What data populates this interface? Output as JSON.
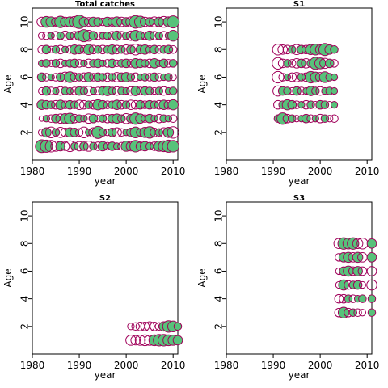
{
  "colors": {
    "positive_fill": "#57c27a",
    "outline": "#a0005a",
    "frame": "#000000"
  },
  "chart_data": [
    {
      "type": "scatter",
      "subtype": "bubble-residuals",
      "title": "Total catches",
      "xlabel": "year",
      "ylabel": "Age",
      "xlim": [
        1980,
        2011
      ],
      "ylim": [
        0,
        11
      ],
      "xticks": [
        1980,
        1990,
        2000,
        2010
      ],
      "yticks": [
        2,
        4,
        6,
        8,
        10
      ],
      "years": [
        1982,
        1983,
        1984,
        1985,
        1986,
        1987,
        1988,
        1989,
        1990,
        1991,
        1992,
        1993,
        1994,
        1995,
        1996,
        1997,
        1998,
        1999,
        2000,
        2001,
        2002,
        2003,
        2004,
        2005,
        2006,
        2007,
        2008,
        2009,
        2010
      ],
      "ages": [
        1,
        2,
        3,
        4,
        5,
        6,
        7,
        8,
        9,
        10
      ],
      "residuals": [
        [
          1.1,
          1.0,
          -0.9,
          -0.7,
          0.6,
          -0.5,
          -0.8,
          0.4,
          -0.6,
          0.5,
          -0.7,
          0.4,
          -0.5,
          0.6,
          -0.4,
          0.5,
          0.3,
          -0.4,
          0.7,
          -0.6,
          0.9,
          -0.5,
          0.6,
          0.4,
          -0.5,
          0.7,
          0.8,
          1.0,
          0.9
        ],
        [
          -0.3,
          0.6,
          -0.8,
          0.4,
          -0.7,
          -0.5,
          0.6,
          0.5,
          -0.4,
          -0.8,
          0.3,
          -0.6,
          1.0,
          0.4,
          -0.3,
          0.5,
          -0.6,
          -0.4,
          0.3,
          0.5,
          0.8,
          -0.4,
          0.7,
          0.9,
          -0.5,
          0.4,
          -0.6,
          0.7,
          -0.9
        ],
        [
          -0.2,
          0.3,
          -0.4,
          0.5,
          -0.6,
          0.7,
          0.8,
          -0.5,
          0.4,
          0.3,
          -0.6,
          0.5,
          -0.3,
          0.4,
          -0.5,
          0.5,
          0.6,
          0.4,
          -0.7,
          0.5,
          0.9,
          0.6,
          -0.4,
          0.5,
          0.3,
          -0.5,
          0.4,
          0.3,
          -0.4
        ],
        [
          0.6,
          0.5,
          0.4,
          -0.5,
          0.6,
          -0.4,
          0.5,
          0.4,
          -0.6,
          -0.5,
          0.4,
          -0.5,
          0.7,
          0.5,
          -0.4,
          0.4,
          0.6,
          -0.5,
          0.4,
          -0.6,
          -0.5,
          0.5,
          -0.4,
          0.5,
          0.4,
          -0.5,
          0.6,
          -0.5,
          0.7
        ],
        [
          -0.3,
          0.5,
          -0.4,
          0.3,
          -0.5,
          0.4,
          0.3,
          -0.4,
          0.5,
          0.4,
          -0.6,
          0.3,
          -0.4,
          0.5,
          0.6,
          0.4,
          -0.5,
          0.4,
          0.3,
          -0.5,
          0.6,
          -0.4,
          0.5,
          0.4,
          -0.3,
          0.4,
          -0.5,
          0.3,
          0.4
        ],
        [
          0.5,
          -0.4,
          0.3,
          -0.4,
          0.5,
          -0.7,
          0.8,
          -0.5,
          0.4,
          -0.5,
          0.6,
          -0.4,
          0.5,
          0.4,
          -0.5,
          0.4,
          -0.6,
          0.5,
          0.6,
          0.4,
          -0.5,
          0.3,
          0.4,
          -0.4,
          0.5,
          -0.4,
          0.3,
          0.4,
          -0.3
        ],
        [
          0.3,
          0.4,
          -0.3,
          0.4,
          -0.5,
          0.3,
          0.4,
          0.5,
          -0.4,
          0.3,
          -0.5,
          0.4,
          0.5,
          0.3,
          -0.4,
          0.5,
          -0.3,
          0.4,
          0.5,
          -0.4,
          0.6,
          0.5,
          0.4,
          -0.5,
          0.6,
          0.3,
          0.5,
          -0.4,
          0.4
        ],
        [
          -0.4,
          0.5,
          -0.3,
          0.4,
          -0.5,
          0.3,
          -0.4,
          0.6,
          0.5,
          -0.4,
          0.7,
          -0.5,
          0.4,
          -0.5,
          0.4,
          0.6,
          -0.5,
          0.4,
          -0.6,
          0.5,
          -0.8,
          0.5,
          0.6,
          -0.4,
          0.5,
          -0.4,
          0.4,
          0.5,
          -0.4
        ],
        [
          -0.3,
          -0.4,
          0.3,
          -0.5,
          0.4,
          -0.6,
          0.4,
          -0.5,
          0.6,
          1.0,
          -0.8,
          0.5,
          -0.4,
          0.3,
          0.4,
          -0.5,
          0.6,
          -0.5,
          0.4,
          -0.6,
          0.8,
          0.5,
          -0.4,
          0.6,
          -0.5,
          0.4,
          -0.5,
          0.3,
          0.8
        ],
        [
          -0.6,
          0.8,
          0.7,
          -0.5,
          0.9,
          -0.6,
          0.7,
          -0.8,
          1.2,
          0.6,
          -0.5,
          0.6,
          0.5,
          -0.4,
          0.6,
          -0.5,
          0.7,
          -0.6,
          0.5,
          -0.7,
          1.1,
          0.9,
          -0.6,
          0.5,
          -0.7,
          0.6,
          -0.8,
          0.7,
          1.0
        ]
      ]
    },
    {
      "type": "scatter",
      "subtype": "bubble-residuals",
      "title": "S1",
      "xlabel": "year",
      "ylabel": "Age",
      "xlim": [
        1980,
        2011
      ],
      "ylim": [
        0,
        11
      ],
      "xticks": [
        1980,
        1990,
        2000,
        2010
      ],
      "yticks": [
        2,
        4,
        6,
        8,
        10
      ],
      "years": [
        1991,
        1992,
        1993,
        1994,
        1995,
        1996,
        1997,
        1998,
        1999,
        2000,
        2001,
        2002,
        2003
      ],
      "ages": [
        3,
        4,
        5,
        6,
        7,
        8
      ],
      "residuals": [
        [
          0.4,
          0.9,
          -0.5,
          0.4,
          -0.3,
          0.3,
          0.5,
          -0.4,
          0.3,
          -0.5,
          0.4,
          -0.3,
          -0.4
        ],
        [
          -0.5,
          0.4,
          0.7,
          0.5,
          -0.4,
          0.3,
          -0.5,
          0.4,
          -0.3,
          0.5,
          0.4,
          -0.3,
          0.3
        ],
        [
          -0.7,
          0.5,
          0.4,
          -0.3,
          0.5,
          -0.4,
          0.3,
          0.6,
          0.4,
          -0.5,
          0.3,
          0.4,
          0.3
        ],
        [
          -0.9,
          -0.4,
          0.3,
          -0.5,
          -0.6,
          0.4,
          -0.5,
          0.9,
          0.7,
          -0.6,
          0.8,
          0.4,
          0.3
        ],
        [
          -0.9,
          -0.5,
          0.4,
          -0.4,
          -0.6,
          0.5,
          -0.6,
          0.4,
          1.0,
          0.8,
          -0.7,
          0.5,
          -0.4
        ],
        [
          -0.8,
          -0.6,
          -0.5,
          0.4,
          -0.7,
          0.5,
          -0.5,
          0.7,
          0.8,
          0.6,
          1.0,
          0.6,
          0.4
        ]
      ]
    },
    {
      "type": "scatter",
      "subtype": "bubble-residuals",
      "title": "S2",
      "xlabel": "year",
      "ylabel": "Age",
      "xlim": [
        1980,
        2011
      ],
      "ylim": [
        0,
        11
      ],
      "xticks": [
        1980,
        1990,
        2000,
        2010
      ],
      "yticks": [
        2,
        4,
        6,
        8,
        10
      ],
      "years": [
        2001,
        2002,
        2003,
        2004,
        2005,
        2006,
        2007,
        2008,
        2009,
        2010,
        2011
      ],
      "ages": [
        1,
        2
      ],
      "residuals": [
        [
          -0.7,
          -0.6,
          -0.7,
          -0.8,
          -0.7,
          0.8,
          0.9,
          0.9,
          0.8,
          0.7,
          0.6
        ],
        [
          -0.3,
          -0.4,
          -0.5,
          -0.5,
          -0.6,
          -0.5,
          -0.4,
          0.6,
          0.9,
          0.8,
          0.4
        ]
      ]
    },
    {
      "type": "scatter",
      "subtype": "bubble-residuals",
      "title": "S3",
      "xlabel": "year",
      "ylabel": "Age",
      "xlim": [
        1980,
        2011
      ],
      "ylim": [
        0,
        11
      ],
      "xticks": [
        1980,
        1990,
        2000,
        2010
      ],
      "yticks": [
        2,
        4,
        6,
        8,
        10
      ],
      "years": [
        2004,
        2005,
        2006,
        2007,
        2008,
        2009,
        2011
      ],
      "ages": [
        3,
        4,
        5,
        6,
        7,
        8
      ],
      "residuals": [
        [
          -0.5,
          0.8,
          -0.5,
          0.4,
          -0.4,
          -0.3,
          0.4
        ],
        [
          -0.5,
          -0.5,
          0.4,
          -0.4,
          0.3,
          0.4,
          0.4
        ],
        [
          -0.3,
          0.7,
          -0.5,
          0.4,
          0.5,
          -0.3,
          -0.7
        ],
        [
          -0.3,
          0.5,
          0.7,
          -0.5,
          0.6,
          -0.5,
          -0.6
        ],
        [
          -0.4,
          0.6,
          0.7,
          -0.6,
          0.7,
          -0.6,
          0.6
        ],
        [
          -0.7,
          0.9,
          0.8,
          0.9,
          -0.7,
          -0.8,
          0.6
        ]
      ]
    }
  ]
}
